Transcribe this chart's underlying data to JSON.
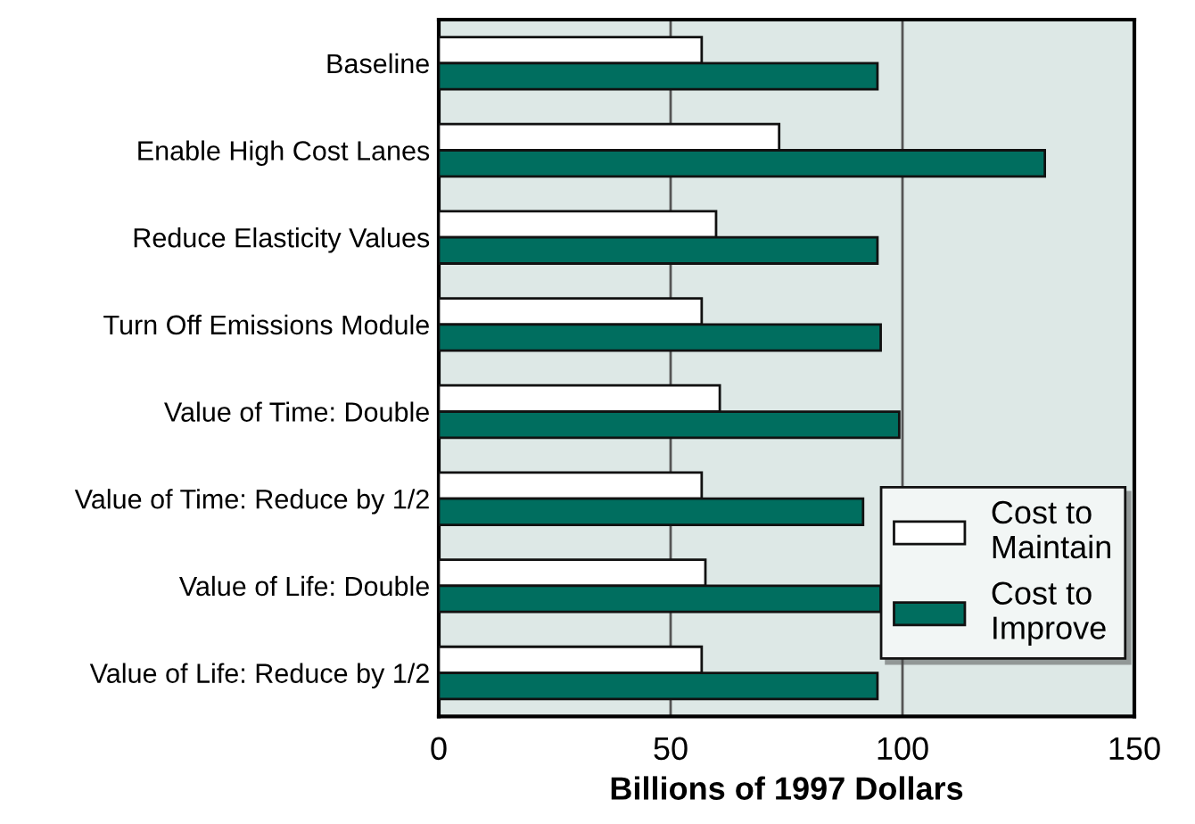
{
  "chart_data": {
    "type": "bar",
    "orientation": "horizontal",
    "xlabel": "Billions of 1997 Dollars",
    "categories": [
      "Baseline",
      "Enable High Cost Lanes",
      "Reduce Elasticity Values",
      "Turn Off Emissions Module",
      "Value of Time: Double",
      "Value of Time: Reduce by 1/2",
      "Value of Life: Double",
      "Value of Life: Reduce by 1/2"
    ],
    "series": [
      {
        "name": "Cost to\nMaintain",
        "color": "#ffffff",
        "values": [
          56.7,
          73.4,
          59.8,
          56.7,
          60.6,
          56.7,
          57.5,
          56.7
        ]
      },
      {
        "name": "Cost to\nImprove",
        "color": "#006e5f",
        "values": [
          94.6,
          130.7,
          94.6,
          95.3,
          99.3,
          91.5,
          95.3,
          94.6
        ]
      }
    ],
    "xlim": [
      0,
      150
    ],
    "xticks": [
      0,
      50,
      100,
      150
    ],
    "grid": "x",
    "legend": "bottom right"
  }
}
